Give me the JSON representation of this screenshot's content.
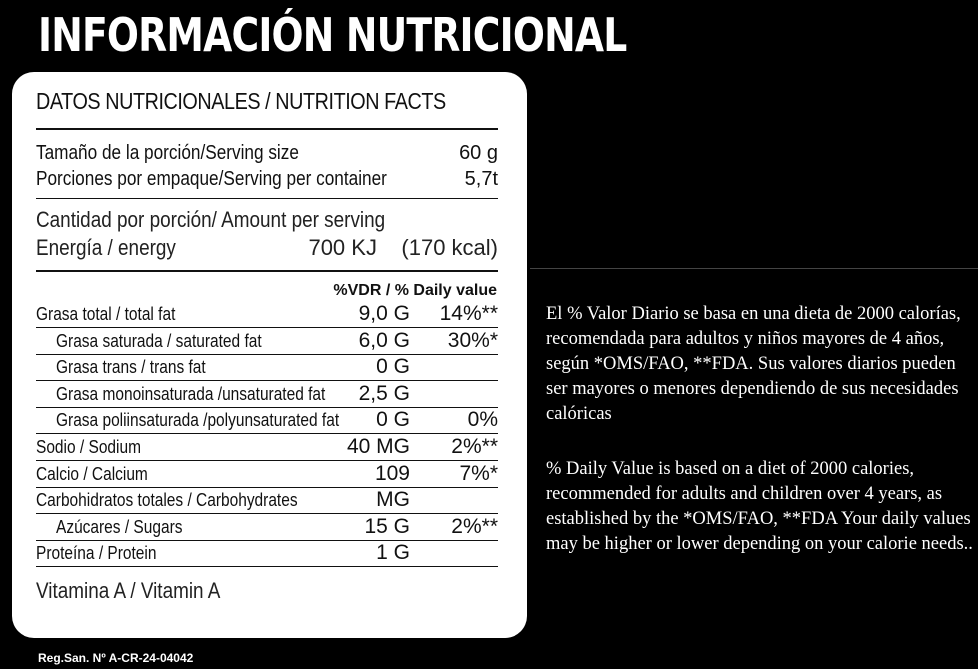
{
  "title": "INFORMACIÓN NUTRICIONAL",
  "panel": {
    "heading": "DATOS NUTRICIONALES / NUTRITION FACTS",
    "serving_size_label": "Tamaño de la porción/Serving size",
    "serving_size_value": "60 g",
    "servings_label": "Porciones por empaque/Serving per container",
    "servings_value": "5,7t",
    "amount_label": "Cantidad por porción/ Amount per serving",
    "energy_label": "Energía / energy",
    "energy_value": "700 KJ    (170 kcal)",
    "dv_header": "%VDR / % Daily value",
    "nutrients": [
      {
        "label": "Grasa total / total fat",
        "amount": "9,0 G",
        "pct": "14%**"
      },
      {
        "label": "Grasa saturada / saturated fat",
        "amount": "6,0 G",
        "pct": "30%*"
      },
      {
        "label": "Grasa trans / trans fat",
        "amount": "0 G",
        "pct": ""
      },
      {
        "label": "Grasa monoinsaturada /unsaturated fat",
        "amount": "2,5 G",
        "pct": ""
      },
      {
        "label": "Grasa poliinsaturada /polyunsaturated fat",
        "amount": "0 G",
        "pct": "0%"
      },
      {
        "label": "Sodio / Sodium",
        "amount": "40 MG",
        "pct": "2%**"
      },
      {
        "label": "Calcio / Calcium",
        "amount": "109",
        "pct": "7%*"
      },
      {
        "label": "Carbohidratos totales / Carbohydrates",
        "amount": "MG",
        "pct": ""
      },
      {
        "label": "Azúcares / Sugars",
        "amount": "15 G",
        "pct": "2%**"
      },
      {
        "label": "Proteína / Protein",
        "amount": "1 G",
        "pct": ""
      }
    ],
    "vitamin_label": "Vitamina A / Vitamin A"
  },
  "note_es": "El % Valor Diario se basa en una dieta de 2000 calorías, recomendada para adultos y niños mayores de 4 años, según *OMS/FAO, **FDA. Sus valores diarios pueden ser mayores o menores dependiendo de sus necesidades calóricas",
  "note_en": "% Daily Value is based on a diet of 2000 calories, recommended for adults and children over 4 years, as established by the *OMS/FAO, **FDA Your daily values may be higher or lower depending on your calorie needs..",
  "registration": "Reg.San. Nº A-CR-24-04042"
}
